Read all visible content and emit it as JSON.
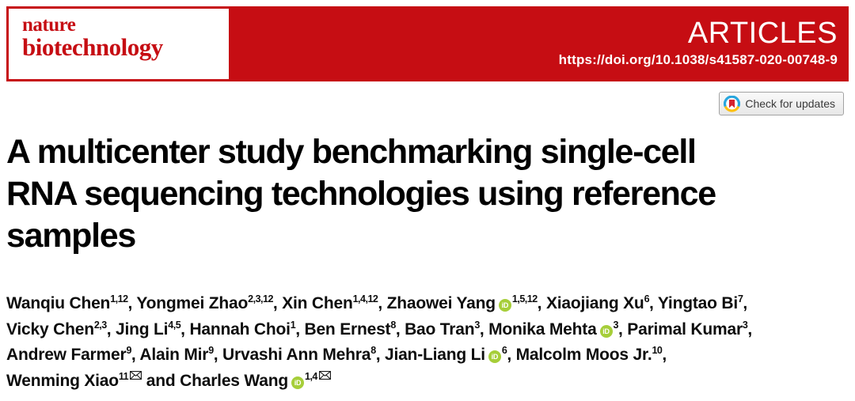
{
  "masthead": {
    "journal_line1": "nature",
    "journal_line2": "biotechnology",
    "article_type": "ARTICLES",
    "doi": "https://doi.org/10.1038/s41587-020-00748-9"
  },
  "check_for_updates": {
    "label": "Check for updates"
  },
  "title": {
    "lines": [
      "A multicenter study benchmarking single-cell",
      "RNA sequencing technologies using reference",
      "samples"
    ]
  },
  "authors": {
    "lines": [
      [
        {
          "name": "Wanqiu Chen",
          "sup": "1,12",
          "sep": ", "
        },
        {
          "name": "Yongmei Zhao",
          "sup": "2,3,12",
          "sep": ", "
        },
        {
          "name": "Xin Chen",
          "sup": "1,4,12",
          "sep": ", "
        },
        {
          "name": "Zhaowei Yang",
          "orcid": true,
          "sup": "1,5,12",
          "sep": ", "
        },
        {
          "name": "Xiaojiang Xu",
          "sup": "6",
          "sep": ", "
        },
        {
          "name": "Yingtao Bi",
          "sup": "7",
          "sep": ","
        }
      ],
      [
        {
          "name": "Vicky Chen",
          "sup": "2,3",
          "sep": ", "
        },
        {
          "name": "Jing Li",
          "sup": "4,5",
          "sep": ", "
        },
        {
          "name": "Hannah Choi",
          "sup": "1",
          "sep": ", "
        },
        {
          "name": "Ben Ernest",
          "sup": "8",
          "sep": ", "
        },
        {
          "name": "Bao Tran",
          "sup": "3",
          "sep": ", "
        },
        {
          "name": "Monika Mehta",
          "orcid": true,
          "sup": "3",
          "sep": ", "
        },
        {
          "name": "Parimal Kumar",
          "sup": "3",
          "sep": ","
        }
      ],
      [
        {
          "name": "Andrew Farmer",
          "sup": "9",
          "sep": ", "
        },
        {
          "name": "Alain Mir",
          "sup": "9",
          "sep": ", "
        },
        {
          "name": "Urvashi Ann Mehra",
          "sup": "8",
          "sep": ", "
        },
        {
          "name": "Jian-Liang Li",
          "orcid": true,
          "sup": "6",
          "sep": ", "
        },
        {
          "name": "Malcolm Moos Jr.",
          "sup": "10",
          "sep": ","
        }
      ],
      [
        {
          "name": "Wenming Xiao",
          "sup": "11",
          "email": true,
          "sep": " and "
        },
        {
          "name": "Charles Wang",
          "orcid": true,
          "sup": "1,4",
          "email": true,
          "sep": ""
        }
      ]
    ]
  },
  "icons": {
    "orcid": "orcid-id-icon",
    "email": "email-envelope-icon",
    "crossmark": "crossmark-circle-icon"
  },
  "colors": {
    "red": "#c60d13",
    "orcid": "#a6ce39",
    "ink": "#0d0d0d"
  }
}
